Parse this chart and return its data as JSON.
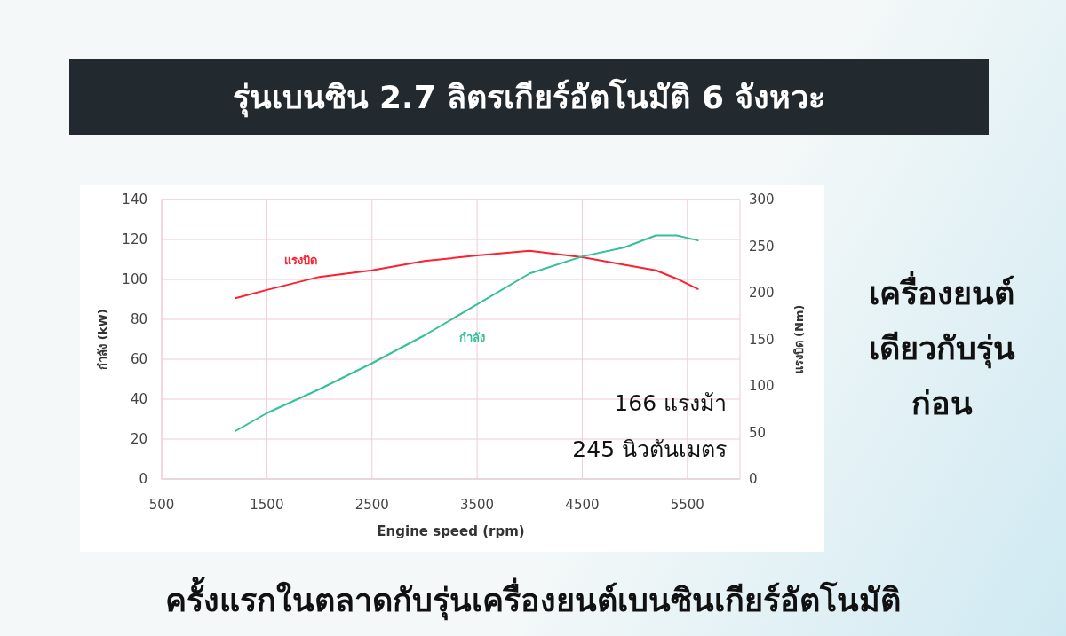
{
  "chart_data": {
    "type": "line",
    "title": "รุ่นเบนซิน 2.7 ลิตรเกียร์อัตโนมัติ 6 จังหวะ",
    "xlabel": "Engine speed (rpm)",
    "ylabel": "กำลัง (kW)",
    "y2label": "แรงบิด (Nm)",
    "x": [
      1200,
      1500,
      2000,
      2500,
      3000,
      3500,
      4000,
      4500,
      4900,
      5200,
      5400,
      5600
    ],
    "series": [
      {
        "name": "แรงบิด",
        "color": "#ff1f2f",
        "axis": "y2",
        "values": [
          194,
          203,
          217,
          224,
          234,
          240,
          245,
          238,
          230,
          224,
          215,
          204
        ]
      },
      {
        "name": "กำลัง",
        "color": "#33c09a",
        "values": [
          24,
          33,
          45,
          58,
          72,
          87.5,
          103,
          111.5,
          116,
          122,
          122,
          119.5
        ]
      }
    ],
    "xlim": [
      500,
      6000
    ],
    "xticks": [
      500,
      1500,
      2500,
      3500,
      4500,
      5500
    ],
    "ylim": [
      0,
      140
    ],
    "yticks": [
      0,
      20,
      40,
      60,
      80,
      100,
      120,
      140
    ],
    "y2lim": [
      0,
      300
    ],
    "y2ticks": [
      0,
      50,
      100,
      150,
      200,
      250,
      300
    ],
    "grid": true,
    "line_style": "solid",
    "marker": "none",
    "annotations": [
      "166 แรงม้า",
      "245 นิวตันเมตร",
      "เครื่องยนต์เดียวกับรุ่นก่อน",
      "ครั้งแรกในตลาดกับรุ่นเครื่องยนต์เบนซินเกียร์อัตโนมัติ"
    ]
  }
}
